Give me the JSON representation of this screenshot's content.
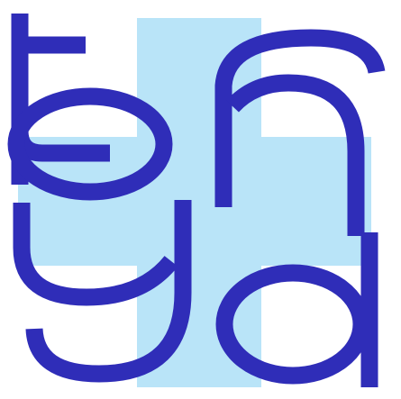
{
  "logo": {
    "glyphs": [
      "t",
      "b",
      "f",
      "y",
      "a"
    ],
    "text": "tbfya"
  },
  "colors": {
    "background": "#ffffff",
    "glyph_stroke": "#2f2db8",
    "cross_fill": "#b9e4f8"
  },
  "icons": {
    "logo": "monogram-logo-icon",
    "cross": "cross-background-shape"
  }
}
